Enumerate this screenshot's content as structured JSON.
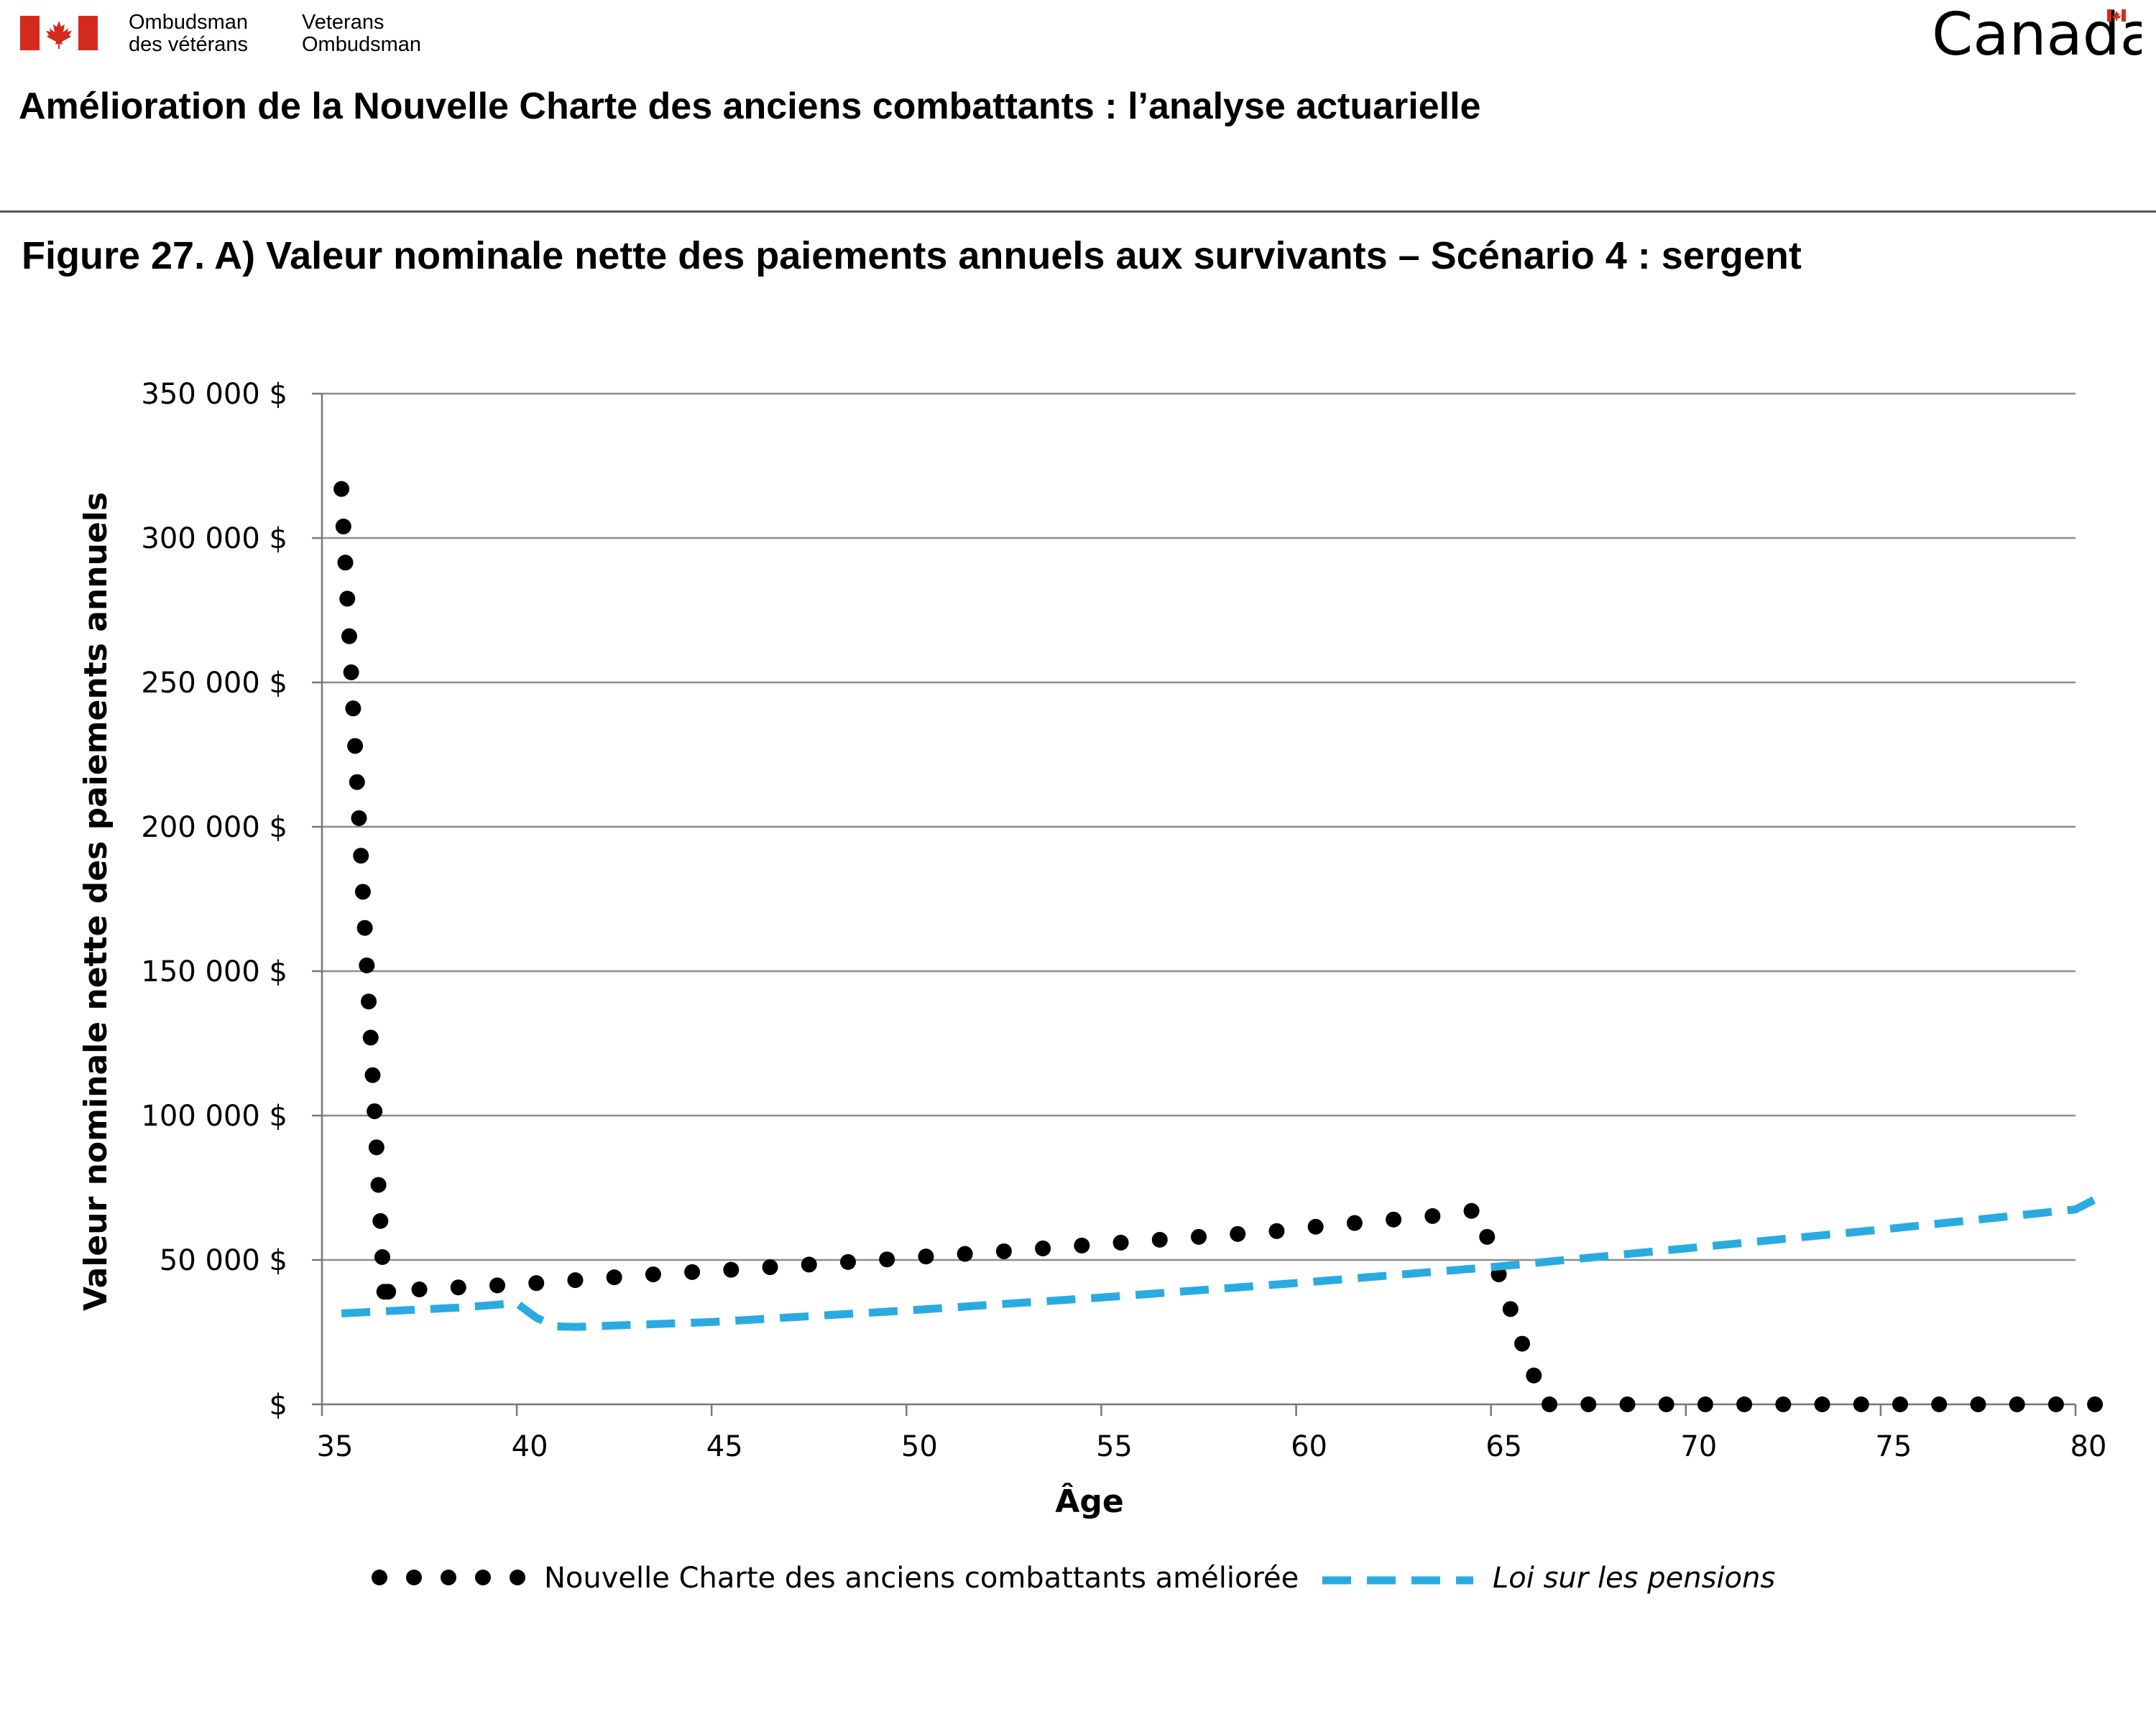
{
  "header": {
    "org_fr_line1": "Ombudsman",
    "org_fr_line2": "des vétérans",
    "org_en_line1": "Veterans",
    "org_en_line2": "Ombudsman",
    "wordmark": "Canada",
    "flag_color": "#d52b1e"
  },
  "document_title": "Amélioration de la Nouvelle Charte des anciens combattants : l’analyse actuarielle",
  "figure_title": "Figure 27. A) Valeur nominale nette des paiements annuels aux survivants – Scénario 4 : sergent",
  "chart_data": {
    "type": "line",
    "title": "Figure 27. A) Valeur nominale nette des paiements annuels aux survivants – Scénario 4 : sergent",
    "xlabel": "Âge",
    "ylabel": "Valeur nominale nette des paiements annuels",
    "xlim": [
      35,
      80
    ],
    "ylim": [
      0,
      350000
    ],
    "x_ticks": [
      35,
      40,
      45,
      50,
      55,
      60,
      65,
      70,
      75,
      80
    ],
    "x_tick_labels": [
      "35",
      "40",
      "45",
      "50",
      "55",
      "60",
      "65",
      "70",
      "75",
      "80"
    ],
    "y_ticks": [
      0,
      50000,
      100000,
      150000,
      200000,
      250000,
      300000,
      350000
    ],
    "y_tick_labels": [
      "$",
      "50 000 $",
      "100 000 $",
      "150 000 $",
      "200 000 $",
      "250 000 $",
      "300 000 $",
      "350 000 $"
    ],
    "grid": "horizontal",
    "legend_position": "bottom",
    "series": [
      {
        "name": "Nouvelle Charte des anciens combattants améliorée",
        "style": "dotted",
        "color": "#000000",
        "x": [
          35.5,
          35.55,
          35.6,
          35.65,
          35.7,
          35.75,
          35.8,
          35.85,
          35.9,
          35.95,
          36.0,
          36.05,
          36.1,
          36.15,
          36.2,
          36.25,
          36.3,
          36.35,
          36.4,
          36.45,
          36.5,
          36.55,
          36.6,
          36.7,
          37.5,
          38.5,
          39.5,
          40.5,
          41.5,
          42.5,
          43.5,
          44.5,
          45.5,
          46.5,
          47.5,
          48.5,
          49.5,
          50.5,
          51.5,
          52.5,
          53.5,
          54.5,
          55.5,
          56.5,
          57.5,
          58.5,
          59.5,
          60.5,
          61.5,
          62.5,
          63.5,
          64.5,
          64.9,
          65.2,
          65.5,
          65.8,
          66.1,
          66.5,
          67.5,
          68.5,
          69.5,
          70.5,
          71.5,
          72.5,
          73.5,
          74.5,
          75.5,
          76.5,
          77.5,
          78.5,
          79.5,
          80.5
        ],
        "y": [
          317000,
          304000,
          291500,
          279000,
          266000,
          253500,
          241000,
          228000,
          215500,
          203000,
          190000,
          177500,
          165000,
          152000,
          139500,
          127000,
          114000,
          101500,
          89000,
          76000,
          63500,
          51000,
          39000,
          39000,
          39800,
          40500,
          41200,
          42000,
          43000,
          44000,
          45000,
          45800,
          46600,
          47500,
          48400,
          49300,
          50200,
          51200,
          52100,
          53000,
          54000,
          55000,
          56000,
          57000,
          58000,
          59000,
          60000,
          61500,
          62800,
          64000,
          65200,
          67000,
          58000,
          45000,
          33000,
          21000,
          10000,
          0,
          0,
          0,
          0,
          0,
          0,
          0,
          0,
          0,
          0,
          0,
          0,
          0,
          0,
          0
        ]
      },
      {
        "name": "Loi sur les pensions",
        "style": "dashed",
        "color": "#29abe2",
        "x": [
          35.5,
          37,
          38.5,
          39.5,
          40,
          40.5,
          41,
          41.5,
          45,
          50,
          55,
          60,
          65,
          70,
          75,
          80,
          80.5
        ],
        "y": [
          31500,
          32500,
          33500,
          34500,
          35000,
          30000,
          27000,
          26800,
          28500,
          32500,
          37000,
          42000,
          47500,
          54000,
          60500,
          67500,
          71000
        ]
      }
    ]
  }
}
